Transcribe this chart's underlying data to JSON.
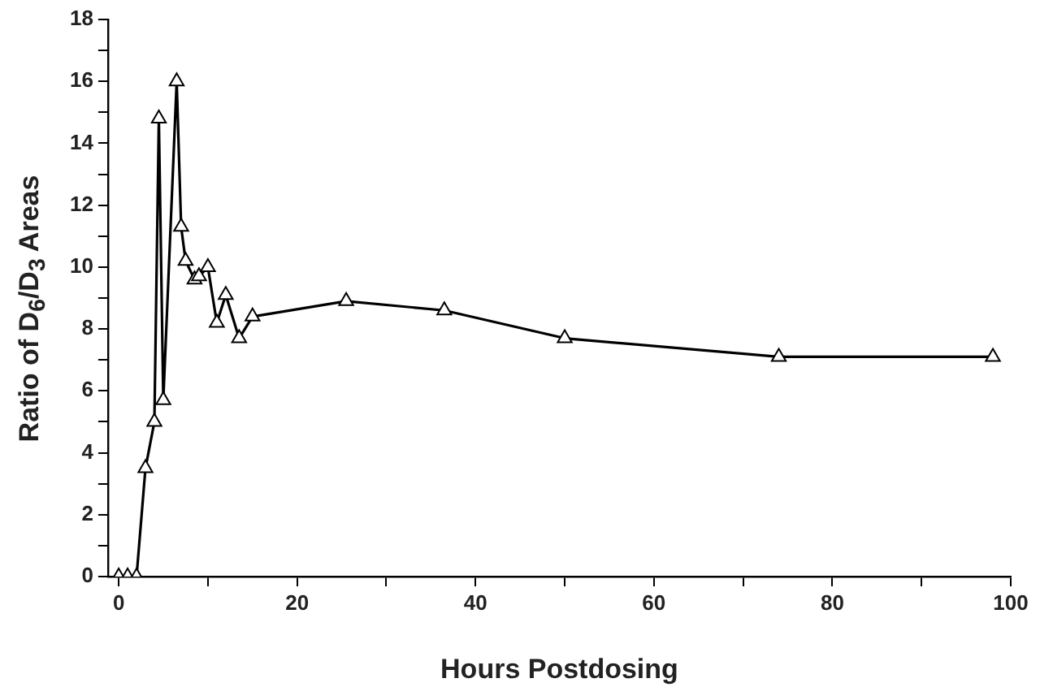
{
  "chart_data": {
    "type": "line",
    "xlabel": "Hours Postdosing",
    "ylabel": "Ratio of D$_{6}$/D$_{3}$ Areas",
    "x": [
      0,
      1,
      2,
      3,
      4,
      4.5,
      5,
      6.5,
      7,
      7.5,
      8.5,
      9,
      10,
      11,
      12,
      13.5,
      15,
      25.5,
      36.5,
      50,
      74,
      98
    ],
    "series": [
      {
        "color": "#000000",
        "values": [
          0,
          0,
          0,
          3.5,
          5.0,
          14.8,
          5.7,
          16.0,
          11.3,
          10.2,
          9.6,
          9.7,
          10.0,
          8.2,
          9.1,
          7.7,
          8.4,
          8.9,
          8.6,
          7.7,
          7.1,
          7.1
        ]
      }
    ],
    "xlim": [
      -1.2,
      100
    ],
    "ylim": [
      0,
      18
    ],
    "xticks": [
      0,
      {
        "value": 10,
        "label": null
      },
      20,
      {
        "value": 30,
        "label": null
      },
      40,
      {
        "value": 50,
        "label": null
      },
      60,
      {
        "value": 70,
        "label": null
      },
      80,
      {
        "value": 90,
        "label": null
      },
      100
    ],
    "yticks": [
      0,
      {
        "value": 1,
        "label": null
      },
      2,
      {
        "value": 3,
        "label": null
      },
      4,
      {
        "value": 5,
        "label": null
      },
      6,
      {
        "value": 7,
        "label": null
      },
      8,
      {
        "value": 9,
        "label": null
      },
      10,
      {
        "value": 11,
        "label": null
      },
      12,
      {
        "value": 13,
        "label": null
      },
      14,
      {
        "value": 15,
        "label": null
      },
      16,
      {
        "value": 17,
        "label": null
      },
      18
    ],
    "grid": false,
    "legend": false,
    "marker": "triangle",
    "line_style": "solid"
  }
}
